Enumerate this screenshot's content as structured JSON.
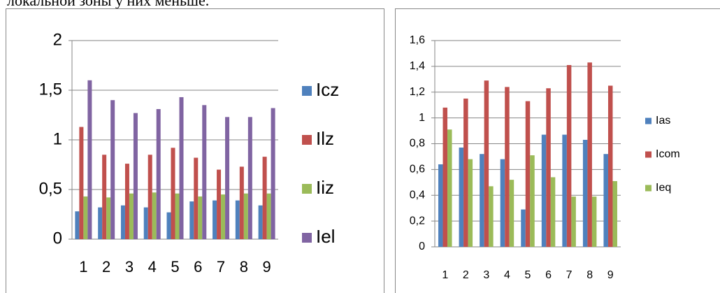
{
  "caption": "локальной зоны у них меньше.",
  "chart_data": [
    {
      "type": "bar",
      "categories": [
        "1",
        "2",
        "3",
        "4",
        "5",
        "6",
        "7",
        "8",
        "9"
      ],
      "ylim": [
        0,
        2
      ],
      "yticks": [
        0,
        {
          "value": 0.5,
          "label": "0,5"
        },
        1,
        {
          "value": 1.5,
          "label": "1,5"
        },
        2
      ],
      "grid": true,
      "legend": "right",
      "series": [
        {
          "name": "Icz",
          "color": "#4f81bd",
          "values": [
            0.28,
            0.32,
            0.34,
            0.32,
            0.27,
            0.38,
            0.39,
            0.39,
            0.34
          ]
        },
        {
          "name": "Ilz",
          "color": "#c0504d",
          "values": [
            1.13,
            0.85,
            0.76,
            0.85,
            0.92,
            0.82,
            0.7,
            0.73,
            0.83
          ]
        },
        {
          "name": "Iiz",
          "color": "#9bbb59",
          "values": [
            0.43,
            0.42,
            0.46,
            0.47,
            0.46,
            0.43,
            0.45,
            0.46,
            0.46
          ]
        },
        {
          "name": "Iel",
          "color": "#8064a2",
          "values": [
            1.6,
            1.4,
            1.27,
            1.31,
            1.43,
            1.35,
            1.23,
            1.23,
            1.32
          ]
        }
      ]
    },
    {
      "type": "bar",
      "categories": [
        "1",
        "2",
        "3",
        "4",
        "5",
        "6",
        "7",
        "8",
        "9"
      ],
      "ylim": [
        0,
        1.6
      ],
      "yticks": [
        0,
        {
          "value": 0.2,
          "label": "0,2"
        },
        {
          "value": 0.4,
          "label": "0,4"
        },
        {
          "value": 0.6,
          "label": "0,6"
        },
        {
          "value": 0.8,
          "label": "0,8"
        },
        1,
        {
          "value": 1.2,
          "label": "1,2"
        },
        {
          "value": 1.4,
          "label": "1,4"
        },
        {
          "value": 1.6,
          "label": "1,6"
        }
      ],
      "grid": true,
      "legend": "right",
      "series": [
        {
          "name": "Ias",
          "color": "#4f81bd",
          "values": [
            0.64,
            0.77,
            0.72,
            0.68,
            0.29,
            0.87,
            0.87,
            0.83,
            0.72
          ]
        },
        {
          "name": "Icom",
          "color": "#c0504d",
          "values": [
            1.08,
            1.15,
            1.29,
            1.24,
            1.13,
            1.23,
            1.41,
            1.43,
            1.25
          ]
        },
        {
          "name": "Ieq",
          "color": "#9bbb59",
          "values": [
            0.91,
            0.68,
            0.47,
            0.52,
            0.71,
            0.54,
            0.39,
            0.39,
            0.51
          ]
        }
      ]
    }
  ]
}
